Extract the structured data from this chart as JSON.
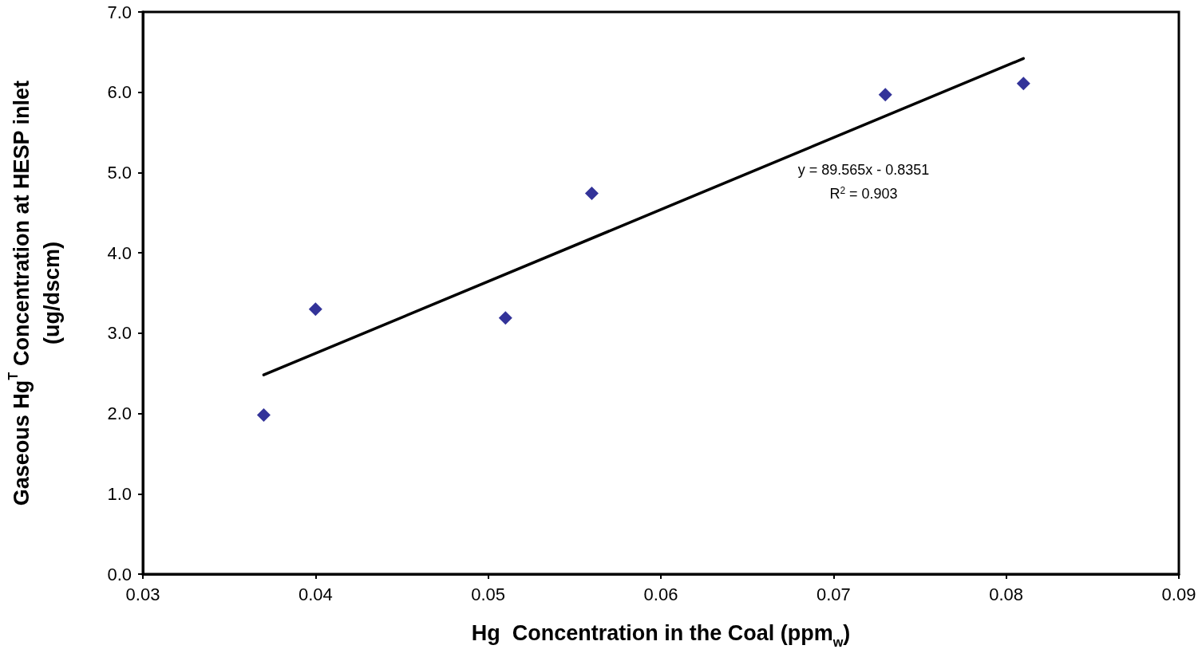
{
  "chart_data": {
    "type": "scatter",
    "xlabel": "Hg  Concentration in the Coal (ppm$_{w}$)",
    "ylabel": "Gaseous Hg$^{T}$ Concentration at HESP inlet (ug/dscm)",
    "xlim": [
      0.03,
      0.09
    ],
    "xticks": [
      0.03,
      0.04,
      0.05,
      0.06,
      0.07,
      0.08,
      0.09
    ],
    "ylim": [
      0,
      7
    ],
    "yticks": [
      {
        "value": 0,
        "label": "0.0"
      },
      {
        "value": 1,
        "label": "1.0"
      },
      {
        "value": 2,
        "label": "2.0"
      },
      {
        "value": 3,
        "label": "3.0"
      },
      {
        "value": 4,
        "label": "4.0"
      },
      {
        "value": 5,
        "label": "5.0"
      },
      {
        "value": 6,
        "label": "6.0"
      },
      {
        "value": 7,
        "label": "7.0"
      }
    ],
    "series": [
      {
        "color": "#000080",
        "marker": "diamond",
        "x": [
          0.037,
          0.04,
          0.051,
          0.056,
          0.073,
          0.081
        ],
        "values": [
          1.98,
          3.3,
          3.19,
          4.74,
          5.97,
          6.11
        ]
      },
      {
        "type": "line",
        "color": "#000000",
        "marker": "none",
        "line_style": "solid",
        "x": [
          0.037,
          0.081
        ],
        "values": [
          2.48,
          6.42
        ]
      }
    ],
    "annotations": [
      "y = 89.565x - 0.8351",
      "R$^{2}$ = 0.903"
    ],
    "grid": false
  }
}
